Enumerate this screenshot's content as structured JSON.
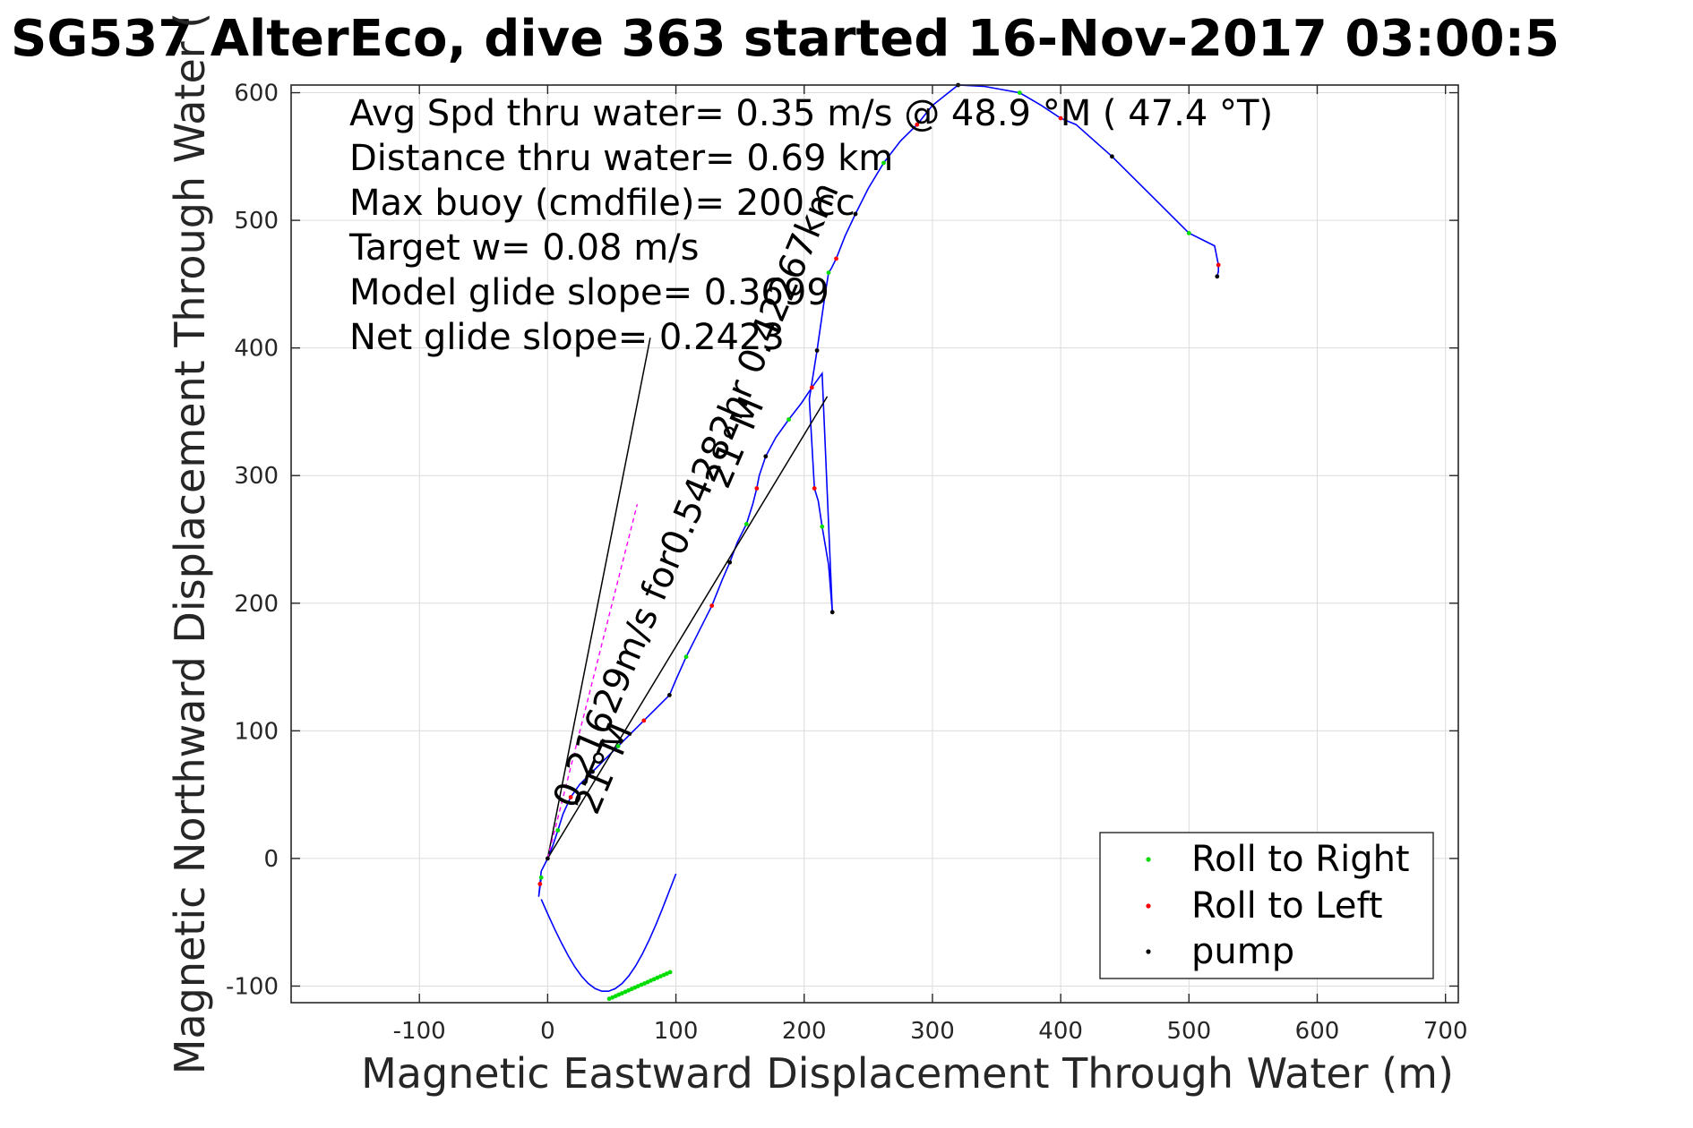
{
  "chart_data": {
    "type": "line",
    "title": "SG537 AlterEco, dive 363 started 16-Nov-2017 03:00:5",
    "xlabel": "Magnetic Eastward Displacement Through Water (m)",
    "ylabel": "Magnetic Northward Displacement Through Water (",
    "xlim": [
      -200,
      710
    ],
    "ylim": [
      -113,
      606
    ],
    "xticks": [
      -100,
      0,
      100,
      200,
      300,
      400,
      500,
      600,
      700
    ],
    "yticks": [
      -100,
      0,
      100,
      200,
      300,
      400,
      500,
      600
    ],
    "grid": true,
    "legend_position": "bottom-right",
    "colors": {
      "track": "#0000ff",
      "roll_right": "#00dd00",
      "roll_left": "#ff0000",
      "pump": "#000000",
      "heading_line": "#000000",
      "dashed_line": "#ff00ff"
    },
    "stats": [
      "Avg Spd thru water=  0.35 m/s @  48.9 °M ( 47.4 °T)",
      "Distance thru water=  0.69 km",
      "Max buoy (cmdfile)= 200 cc",
      "Target w= 0.08 m/s",
      "Model glide slope= 0.3699",
      "Net glide slope= 0.2423"
    ],
    "annotations": [
      "0.21629m/s for0.54282hr  0.42267km",
      "21°M",
      "21°M"
    ],
    "track": {
      "name": "track",
      "x": [
        -5,
        -7,
        -6,
        -5,
        0,
        4,
        8,
        12,
        18,
        25,
        35,
        45,
        55,
        65,
        75,
        85,
        95,
        100,
        108,
        118,
        128,
        136,
        142,
        148,
        155,
        160,
        163,
        165,
        170,
        178,
        188,
        198,
        206,
        214,
        222,
        219,
        214,
        211,
        208,
        204,
        210,
        216,
        219,
        221,
        225,
        232,
        240,
        250,
        262,
        275,
        288,
        300,
        320,
        340,
        368,
        385,
        400,
        412,
        440,
        470,
        500,
        520,
        523,
        523,
        522
      ],
      "y": [
        -15,
        -30,
        -20,
        -10,
        0,
        10,
        22,
        35,
        48,
        58,
        68,
        78,
        88,
        98,
        108,
        118,
        128,
        140,
        158,
        178,
        198,
        218,
        232,
        248,
        262,
        278,
        290,
        300,
        315,
        330,
        344,
        357,
        369,
        380,
        193,
        230,
        260,
        280,
        290,
        360,
        398,
        440,
        459,
        462,
        470,
        488,
        505,
        525,
        545,
        562,
        575,
        590,
        606,
        605,
        600,
        590,
        580,
        575,
        550,
        520,
        490,
        480,
        465,
        460,
        456
      ]
    },
    "headings": [
      {
        "x": [
          0,
          80
        ],
        "y": [
          0,
          408
        ]
      },
      {
        "x": [
          0,
          218
        ],
        "y": [
          0,
          362
        ]
      }
    ],
    "legend": [
      {
        "name": "Roll to Right",
        "color": "#00dd00"
      },
      {
        "name": "Roll to Left",
        "color": "#ff0000"
      },
      {
        "name": "pump",
        "color": "#000000"
      }
    ]
  }
}
